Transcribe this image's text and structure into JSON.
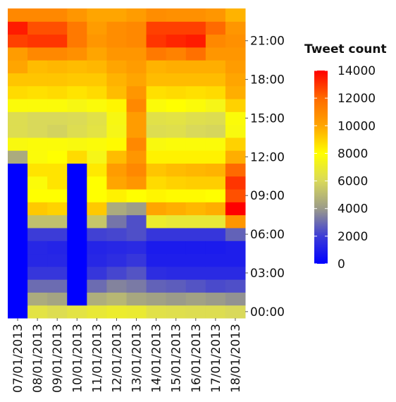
{
  "chart_data": {
    "type": "heatmap",
    "title": "",
    "xlabel": "",
    "ylabel": "",
    "x": [
      "07/01/2013",
      "08/01/2013",
      "09/01/2013",
      "10/01/2013",
      "11/01/2013",
      "12/01/2013",
      "13/01/2013",
      "14/01/2013",
      "15/01/2013",
      "16/01/2013",
      "17/01/2013",
      "18/01/2013"
    ],
    "y_hours": [
      0,
      1,
      2,
      3,
      4,
      5,
      6,
      7,
      8,
      9,
      10,
      11,
      12,
      13,
      14,
      15,
      16,
      17,
      18,
      19,
      20,
      21,
      22,
      23
    ],
    "y_tick_labels": [
      {
        "hour": 0,
        "label": "00:00"
      },
      {
        "hour": 3,
        "label": "03:00"
      },
      {
        "hour": 6,
        "label": "06:00"
      },
      {
        "hour": 9,
        "label": "09:00"
      },
      {
        "hour": 12,
        "label": "12:00"
      },
      {
        "hour": 15,
        "label": "15:00"
      },
      {
        "hour": 18,
        "label": "18:00"
      },
      {
        "hour": 21,
        "label": "21:00"
      }
    ],
    "values_by_hour": [
      [
        0,
        6500,
        6200,
        6500,
        6800,
        7000,
        6900,
        6400,
        6300,
        6200,
        6200,
        6000
      ],
      [
        0,
        4500,
        4300,
        0,
        4600,
        4900,
        4400,
        4200,
        4000,
        4200,
        4000,
        3800
      ],
      [
        0,
        3000,
        3000,
        0,
        3000,
        3500,
        3300,
        2800,
        2700,
        2500,
        2300,
        2400
      ],
      [
        0,
        1800,
        1800,
        0,
        1800,
        2200,
        2500,
        1500,
        1400,
        1400,
        1400,
        1400
      ],
      [
        0,
        1300,
        1300,
        0,
        1300,
        1500,
        1800,
        1000,
        1000,
        1000,
        1000,
        1000
      ],
      [
        0,
        1300,
        1200,
        0,
        1200,
        1300,
        1400,
        900,
        900,
        900,
        900,
        1000
      ],
      [
        0,
        2000,
        2000,
        0,
        2100,
        2200,
        2400,
        1800,
        1800,
        1800,
        1800,
        2800
      ],
      [
        0,
        5200,
        5200,
        0,
        5400,
        3200,
        2400,
        7000,
        6800,
        6800,
        6800,
        10500
      ],
      [
        0,
        9200,
        9000,
        0,
        9200,
        4500,
        4100,
        10000,
        9800,
        9600,
        9800,
        14000
      ],
      [
        0,
        8000,
        8000,
        0,
        8000,
        8300,
        8000,
        8200,
        8100,
        8100,
        8000,
        12500
      ],
      [
        0,
        7800,
        8600,
        0,
        8000,
        10000,
        10500,
        8800,
        9000,
        9100,
        9100,
        13000
      ],
      [
        0,
        8600,
        8600,
        0,
        8500,
        10300,
        11000,
        9300,
        9500,
        9600,
        9700,
        12000
      ],
      [
        4500,
        7800,
        8000,
        8800,
        7500,
        9500,
        10500,
        8300,
        8300,
        8300,
        8300,
        9800
      ],
      [
        7700,
        7800,
        7800,
        7700,
        7800,
        8100,
        11000,
        7700,
        7800,
        7800,
        7800,
        9000
      ],
      [
        6200,
        6000,
        5800,
        6200,
        6500,
        7500,
        10300,
        6200,
        6300,
        6000,
        5900,
        7700
      ],
      [
        6200,
        6000,
        6000,
        6100,
        6400,
        7600,
        10300,
        6400,
        6500,
        6300,
        6200,
        7800
      ],
      [
        7800,
        7800,
        7800,
        7600,
        7800,
        8200,
        11000,
        7800,
        8000,
        7800,
        7500,
        9000
      ],
      [
        8800,
        8700,
        8800,
        8600,
        8800,
        9500,
        10500,
        8700,
        8800,
        8700,
        8800,
        9800
      ],
      [
        9300,
        9300,
        9300,
        9200,
        9200,
        9700,
        10000,
        9500,
        9500,
        9500,
        9500,
        10000
      ],
      [
        10000,
        9500,
        9600,
        9500,
        9600,
        10000,
        10300,
        9700,
        9800,
        9800,
        9800,
        10300
      ],
      [
        10300,
        11000,
        11000,
        10700,
        10000,
        10500,
        10500,
        11500,
        11200,
        11800,
        10500,
        10500
      ],
      [
        12800,
        13000,
        13000,
        11500,
        10500,
        10800,
        11000,
        13000,
        13300,
        13500,
        11000,
        10700
      ],
      [
        13500,
        12500,
        12500,
        11500,
        10300,
        10800,
        11000,
        12800,
        12800,
        12800,
        12000,
        10500
      ],
      [
        11000,
        11000,
        11000,
        10500,
        10000,
        10000,
        10300,
        10800,
        10700,
        10700,
        10500,
        9700
      ]
    ],
    "colorscale": {
      "title": "Tweet count",
      "min": 0,
      "max": 14000,
      "ticks": [
        0,
        2000,
        4000,
        6000,
        8000,
        10000,
        12000,
        14000
      ],
      "tick_labels": [
        "0",
        "2000",
        "4000",
        "6000",
        "8000",
        "10000",
        "12000",
        "14000"
      ],
      "stops": [
        {
          "value": 0,
          "color": "#0000ff"
        },
        {
          "value": 2000,
          "color": "#3c3cd7"
        },
        {
          "value": 4000,
          "color": "#9b9b8a"
        },
        {
          "value": 6000,
          "color": "#d9d95a"
        },
        {
          "value": 8000,
          "color": "#ffff00"
        },
        {
          "value": 10000,
          "color": "#ffa500"
        },
        {
          "value": 12000,
          "color": "#ff6a00"
        },
        {
          "value": 14000,
          "color": "#ff0000"
        }
      ]
    },
    "grid": false,
    "legend_position": "right"
  }
}
